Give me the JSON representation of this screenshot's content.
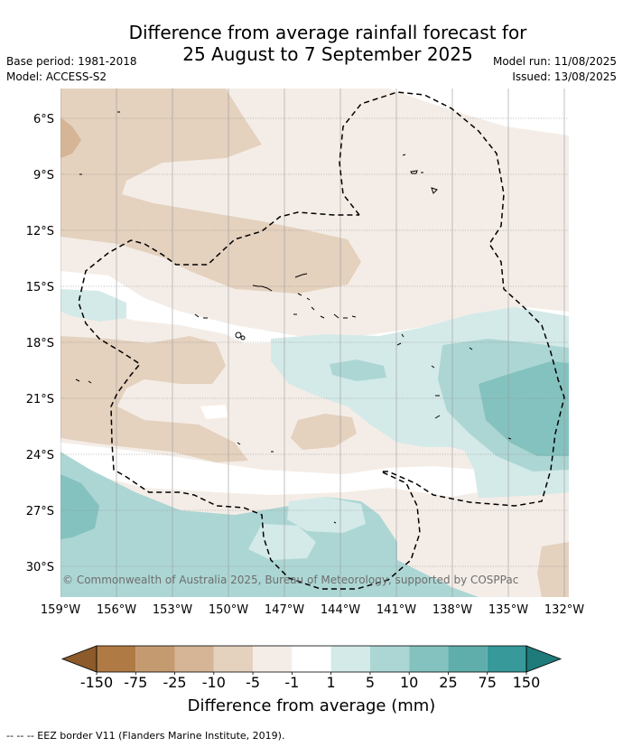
{
  "title_line1": "Difference from average rainfall forecast for",
  "title_line2": "25 August to 7 September 2025",
  "base_period": "Base period: 1981-2018",
  "model": "Model: ACCESS-S2",
  "model_run": "Model run: 11/08/2025",
  "issued": "Issued: 13/08/2025",
  "lat_labels": [
    "6°S",
    "9°S",
    "12°S",
    "15°S",
    "18°S",
    "21°S",
    "24°S",
    "27°S",
    "30°S"
  ],
  "lon_labels": [
    "159°W",
    "156°W",
    "153°W",
    "150°W",
    "147°W",
    "144°W",
    "141°W",
    "138°W",
    "135°W",
    "132°W"
  ],
  "copyright": "© Commonwealth of Australia 2025, Bureau of Meteorology, supported by COSPPac",
  "colorbar": {
    "labels": [
      "-150",
      "-75",
      "-25",
      "-10",
      "-5",
      "-1",
      "1",
      "5",
      "10",
      "25",
      "75",
      "150"
    ],
    "colors": [
      "#8c5a2b",
      "#b07a44",
      "#c49a70",
      "#d5b595",
      "#e4d1be",
      "#f4ede7",
      "#ffffff",
      "#d4eae8",
      "#acd6d4",
      "#84c2bf",
      "#5faeab",
      "#37999a",
      "#1f7a7a"
    ],
    "title": "Difference from average (mm)"
  },
  "footnote": "--  --  -- EEZ border V11 (Flanders Marine Institute, 2019)."
}
